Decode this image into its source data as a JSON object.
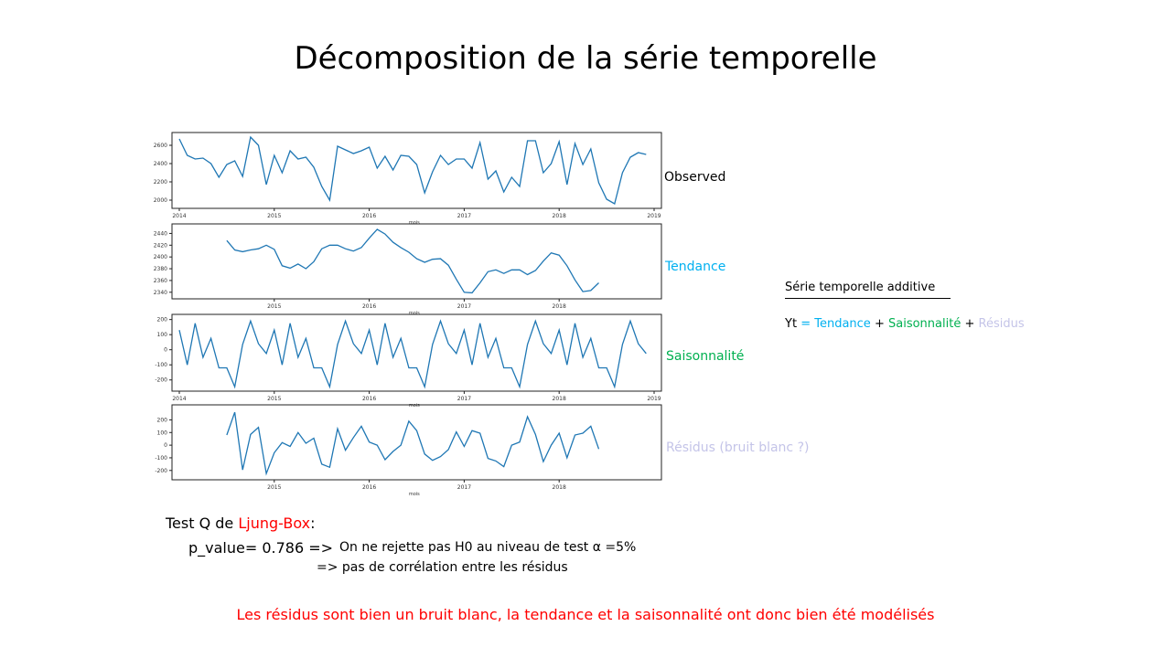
{
  "slide": {
    "title": "Décomposition de la série temporelle",
    "additive_heading": "Série temporelle additive",
    "formula": {
      "yt": "Yt",
      "eq": "=",
      "tendance": "Tendance",
      "plus1": "+",
      "saison": "Saisonnalité",
      "plus2": "+",
      "residus": "Résidus"
    },
    "ljung_box": {
      "prefix": "Test Q de",
      "name": "Ljung-Box",
      "suffix": ":",
      "pvalue": "p_value= 0.786  =>",
      "conclusion1": "On ne rejette pas H0 au niveau de test α =5%",
      "conclusion2": "=> pas de corrélation entre les résidus"
    },
    "conclusion": "Les résidus sont bien un bruit blanc, la tendance et la saisonnalité ont donc bien été modélisés"
  },
  "colors": {
    "line": "#1f77b4",
    "tendance": "#00b0f0",
    "saison": "#00b050",
    "residus": "#c4c4e8",
    "red": "#ff0000"
  },
  "chart_data": [
    {
      "type": "line",
      "label": "Observed",
      "xlabel": "mois",
      "x_start": "2014-01",
      "x_ticks": [
        "2014",
        "2015",
        "2016",
        "2017",
        "2018",
        "2019"
      ],
      "y_ticks": [
        "2000",
        "2200",
        "2400",
        "2600"
      ],
      "ylim": [
        1950,
        2700
      ],
      "y": [
        2670,
        2490,
        2450,
        2460,
        2400,
        2250,
        2390,
        2430,
        2260,
        2690,
        2600,
        2170,
        2490,
        2300,
        2540,
        2450,
        2470,
        2360,
        2150,
        2000,
        2590,
        2550,
        2510,
        2540,
        2580,
        2350,
        2480,
        2330,
        2490,
        2480,
        2390,
        2080,
        2310,
        2490,
        2390,
        2450,
        2450,
        2350,
        2630,
        2230,
        2320,
        2090,
        2250,
        2150,
        2650,
        2650,
        2300,
        2400,
        2640,
        2170,
        2620,
        2390,
        2560,
        2190,
        2010,
        1960,
        2300,
        2470,
        2520,
        2500
      ]
    },
    {
      "type": "line",
      "label": "Tendance",
      "xlabel": "mois",
      "x_start": "2014-07",
      "x_ticks": [
        "2015",
        "2016",
        "2017",
        "2018"
      ],
      "y_ticks": [
        "2340",
        "2360",
        "2380",
        "2400",
        "2420",
        "2440"
      ],
      "ylim": [
        2335,
        2450
      ],
      "y": [
        2428,
        2412,
        2409,
        2412,
        2414,
        2420,
        2413,
        2385,
        2381,
        2388,
        2380,
        2392,
        2414,
        2420,
        2420,
        2414,
        2410,
        2416,
        2432,
        2447,
        2439,
        2425,
        2416,
        2408,
        2397,
        2391,
        2396,
        2397,
        2386,
        2362,
        2340,
        2339,
        2356,
        2375,
        2378,
        2372,
        2378,
        2378,
        2370,
        2377,
        2393,
        2407,
        2403,
        2385,
        2361,
        2341,
        2343,
        2356
      ]
    },
    {
      "type": "line",
      "label": "Saisonnalité",
      "xlabel": "mois",
      "x_start": "2014-01",
      "x_ticks": [
        "2014",
        "2015",
        "2016",
        "2017",
        "2018",
        "2019"
      ],
      "y_ticks": [
        "-200",
        "-100",
        "0",
        "100",
        "200"
      ],
      "ylim": [
        -250,
        210
      ],
      "y": [
        130,
        -100,
        175,
        -50,
        75,
        -120,
        -120,
        -245,
        35,
        190,
        40,
        -25,
        130,
        -100,
        175,
        -50,
        75,
        -120,
        -120,
        -245,
        35,
        190,
        40,
        -25,
        130,
        -100,
        175,
        -50,
        75,
        -120,
        -120,
        -245,
        35,
        190,
        40,
        -25,
        130,
        -100,
        175,
        -50,
        75,
        -120,
        -120,
        -245,
        35,
        190,
        40,
        -25,
        130,
        -100,
        175,
        -50,
        75,
        -120,
        -120,
        -245,
        35,
        190,
        40,
        -25
      ]
    },
    {
      "type": "line",
      "label": "Résidus (bruit blanc ?)",
      "xlabel": "mois",
      "x_start": "2014-07",
      "x_ticks": [
        "2015",
        "2016",
        "2017",
        "2018"
      ],
      "y_ticks": [
        "-200",
        "-100",
        "0",
        "100",
        "200"
      ],
      "ylim": [
        -245,
        290
      ],
      "y": [
        80,
        260,
        -195,
        85,
        140,
        -225,
        -60,
        20,
        -10,
        100,
        15,
        55,
        -150,
        -175,
        130,
        -40,
        60,
        150,
        25,
        0,
        -115,
        -50,
        0,
        190,
        115,
        -70,
        -120,
        -90,
        -35,
        105,
        -10,
        115,
        95,
        -105,
        -125,
        -170,
        0,
        25,
        225,
        85,
        -130,
        0,
        95,
        -100,
        80,
        95,
        150,
        -30
      ]
    }
  ]
}
